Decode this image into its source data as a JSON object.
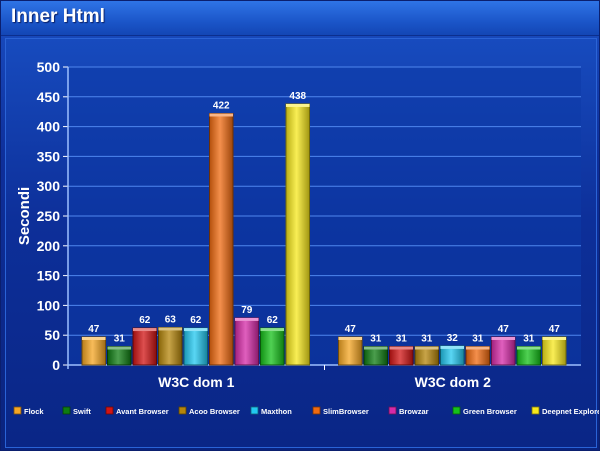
{
  "title": "Inner Html",
  "chart_data": {
    "type": "bar",
    "title": "Inner Html",
    "xlabel": "",
    "ylabel": "Secondi",
    "ylim": [
      0,
      500
    ],
    "yticks": [
      0,
      50,
      100,
      150,
      200,
      250,
      300,
      350,
      400,
      450,
      500
    ],
    "grid": true,
    "legend_position": "bottom",
    "categories": [
      "W3C dom 1",
      "W3C dom 2"
    ],
    "series": [
      {
        "name": "Flock",
        "values": [
          47,
          47
        ],
        "color": "#f5a623"
      },
      {
        "name": "Swift",
        "values": [
          31,
          31
        ],
        "color": "#0f7d12"
      },
      {
        "name": "Avant Browser",
        "values": [
          62,
          31
        ],
        "color": "#d11414"
      },
      {
        "name": "Acoo Browser",
        "values": [
          63,
          31
        ],
        "color": "#b5860b"
      },
      {
        "name": "Maxthon",
        "values": [
          62,
          32
        ],
        "color": "#22c8f0"
      },
      {
        "name": "SlimBrowser",
        "values": [
          422,
          31
        ],
        "color": "#f06a10"
      },
      {
        "name": "Browzar",
        "values": [
          79,
          47
        ],
        "color": "#d62aa8"
      },
      {
        "name": "Green Browser",
        "values": [
          62,
          31
        ],
        "color": "#16c21a"
      },
      {
        "name": "Deepnet Explorer",
        "values": [
          438,
          47
        ],
        "color": "#f7e81c"
      }
    ]
  }
}
